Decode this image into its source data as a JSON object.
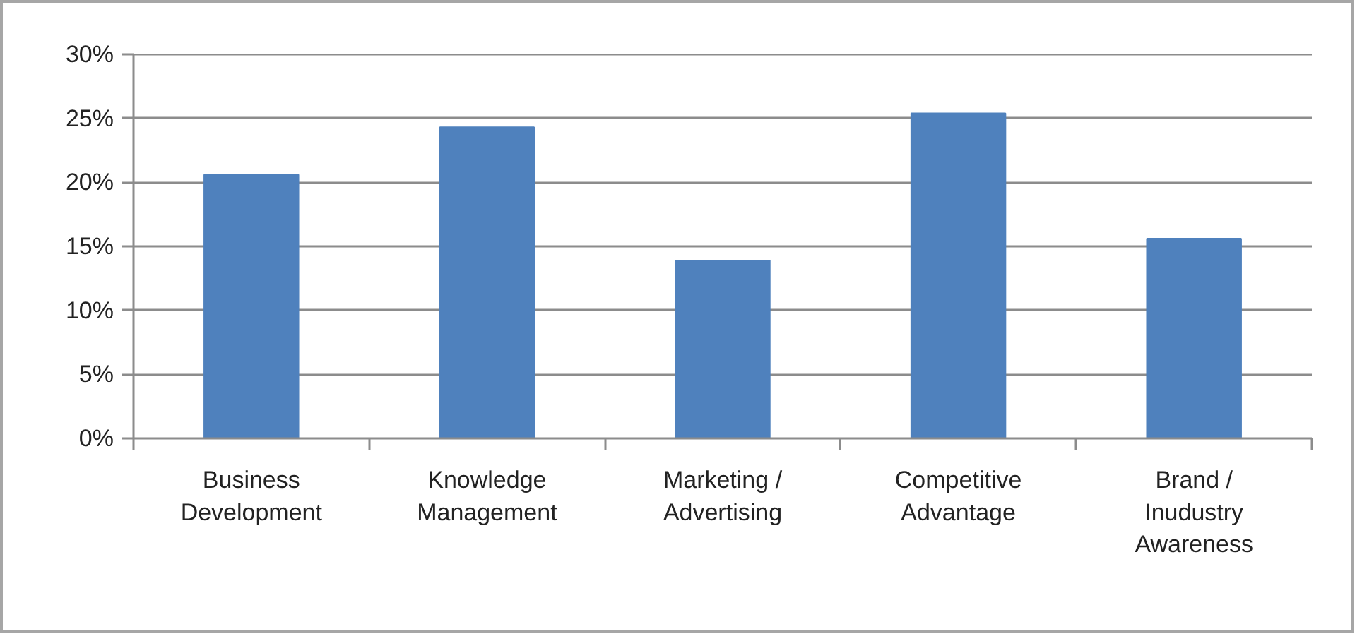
{
  "chart_data": {
    "type": "bar",
    "categories": [
      "Business Development",
      "Knowledge Management",
      "Marketing / Advertising",
      "Competitive Advantage",
      "Brand / Inudustry Awareness"
    ],
    "values": [
      20.6,
      24.3,
      13.9,
      25.4,
      15.6
    ],
    "color": "#4f81bd",
    "ylim": [
      0,
      30
    ],
    "yticks": [
      {
        "value": 0,
        "label": "0%"
      },
      {
        "value": 5,
        "label": "5%"
      },
      {
        "value": 10,
        "label": "10%"
      },
      {
        "value": 15,
        "label": "15%"
      },
      {
        "value": 20,
        "label": "20%"
      },
      {
        "value": 25,
        "label": "25%"
      },
      {
        "value": 30,
        "label": "30%"
      }
    ],
    "grid": "y"
  }
}
